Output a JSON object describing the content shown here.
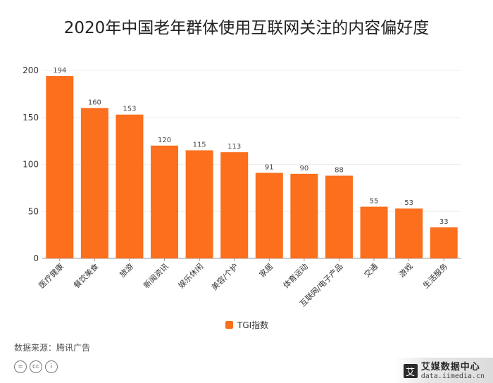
{
  "title": "2020年中国老年群体使用互联网关注的内容偏好度",
  "source": "数据来源：腾讯广告",
  "legend_label": "TGI指数",
  "brand": {
    "name": "艾媒数据中心",
    "url": "data.iimedia.cn",
    "logo_char": "艾"
  },
  "cc_icons": [
    "=",
    "cc",
    "i"
  ],
  "colors": {
    "bar": "#fb6f1d",
    "grid": "#eeeeee",
    "axis": "#999999",
    "text": "#333333"
  },
  "chart_data": {
    "type": "bar",
    "categories": [
      "医疗健康",
      "餐饮美食",
      "旅游",
      "新闻资讯",
      "娱乐休闲",
      "美容/个护",
      "家居",
      "体育运动",
      "互联网/电子产品",
      "交通",
      "游戏",
      "生活服务"
    ],
    "series": [
      {
        "name": "TGI指数",
        "values": [
          194,
          160,
          153,
          120,
          115,
          113,
          91,
          90,
          88,
          55,
          53,
          33
        ]
      }
    ],
    "ylim": [
      0,
      200
    ],
    "yticks": [
      0,
      50,
      100,
      150,
      200
    ],
    "grid": true,
    "legend": "bottom-center",
    "xlabel": "",
    "ylabel": ""
  }
}
